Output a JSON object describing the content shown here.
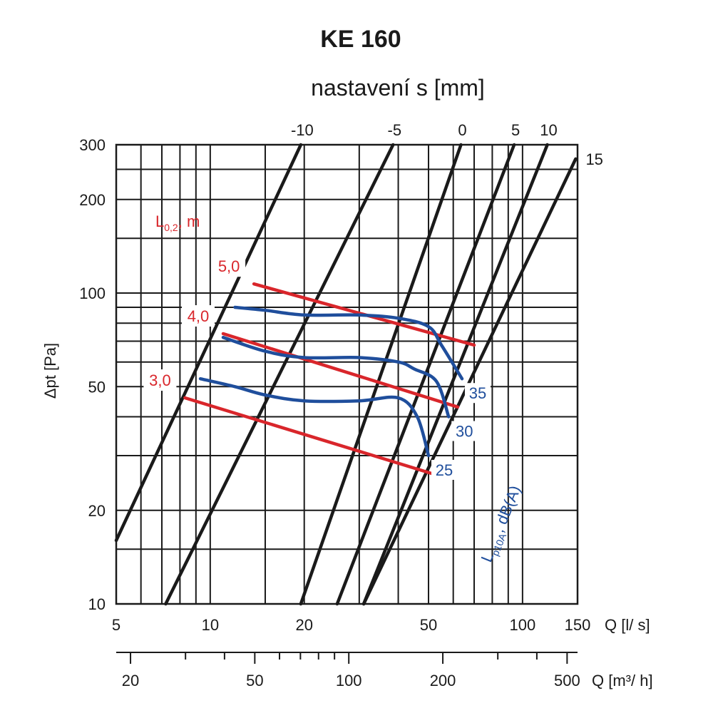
{
  "chart_data": {
    "type": "line",
    "title": "KE 160",
    "subtitle": "nastavení s [mm]",
    "xlabel": "Q [l/ s]",
    "xlabel2": "Q [m³/ h]",
    "ylabel": "Δpt [Pa]",
    "x_scale": "log",
    "y_scale": "log",
    "xlim": [
      5,
      150
    ],
    "ylim": [
      10,
      300
    ],
    "x_ticks": [
      5,
      10,
      20,
      50,
      100,
      150
    ],
    "x_tick_labels": [
      "5",
      "10",
      "20",
      "50",
      "100",
      "150"
    ],
    "y_ticks": [
      10,
      20,
      50,
      100,
      200,
      300
    ],
    "y_tick_labels": [
      "10",
      "20",
      "50",
      "100",
      "200",
      "300"
    ],
    "x2_ticks": [
      20,
      50,
      100,
      200,
      500
    ],
    "x2_tick_labels": [
      "20",
      "50",
      "100",
      "200",
      "500"
    ],
    "x_grid": [
      5,
      6,
      7,
      8,
      9,
      10,
      15,
      20,
      30,
      40,
      50,
      60,
      70,
      80,
      90,
      100,
      150
    ],
    "y_grid": [
      10,
      15,
      20,
      30,
      40,
      50,
      60,
      70,
      80,
      90,
      100,
      150,
      200,
      250,
      300
    ],
    "grid": true,
    "setting_lines": {
      "label": "nastavení s [mm]",
      "color": "#1a1a1a",
      "series": [
        {
          "name": "-10",
          "points": [
            [
              5,
              16
            ],
            [
              19.5,
              300
            ]
          ]
        },
        {
          "name": "-5",
          "points": [
            [
              7.2,
              10
            ],
            [
              38.5,
              300
            ]
          ]
        },
        {
          "name": "0",
          "points": [
            [
              19.5,
              10
            ],
            [
              63.5,
              300
            ]
          ]
        },
        {
          "name": "5",
          "points": [
            [
              25.5,
              10
            ],
            [
              94,
              300
            ]
          ]
        },
        {
          "name": "10",
          "points": [
            [
              31,
              10
            ],
            [
              120,
              300
            ]
          ]
        },
        {
          "name": "15",
          "points": [
            [
              31,
              10
            ],
            [
              148,
              270
            ]
          ]
        }
      ]
    },
    "throw_lines": {
      "label_main": "L",
      "label_sub": "0,2",
      "label_unit": ", m",
      "color": "#d9262b",
      "series": [
        {
          "name": "5,0",
          "points": [
            [
              13.8,
              107
            ],
            [
              70,
              68
            ]
          ]
        },
        {
          "name": "4,0",
          "points": [
            [
              11,
              74
            ],
            [
              62,
              43
            ]
          ]
        },
        {
          "name": "3,0",
          "points": [
            [
              8.3,
              46
            ],
            [
              53,
              26
            ]
          ]
        }
      ]
    },
    "sound_lines": {
      "label_main": "L",
      "label_sub": "p10A",
      "label_unit": ", dB(A)",
      "color": "#1f4e9c",
      "series": [
        {
          "name": "35",
          "points": [
            [
              12,
              90
            ],
            [
              15,
              88
            ],
            [
              20,
              85
            ],
            [
              30,
              85
            ],
            [
              40,
              83
            ],
            [
              50,
              78
            ],
            [
              55,
              68
            ],
            [
              64,
              53
            ]
          ]
        },
        {
          "name": "30",
          "points": [
            [
              11,
              72
            ],
            [
              15,
              65
            ],
            [
              20,
              62
            ],
            [
              30,
              62
            ],
            [
              40,
              60
            ],
            [
              45,
              57
            ],
            [
              53,
              52
            ],
            [
              58,
              40
            ]
          ]
        },
        {
          "name": "25",
          "points": [
            [
              9.3,
              53
            ],
            [
              12,
              50
            ],
            [
              15,
              47
            ],
            [
              20,
              45
            ],
            [
              30,
              45
            ],
            [
              40,
              46
            ],
            [
              46,
              40
            ],
            [
              50,
              30
            ]
          ]
        }
      ]
    }
  }
}
